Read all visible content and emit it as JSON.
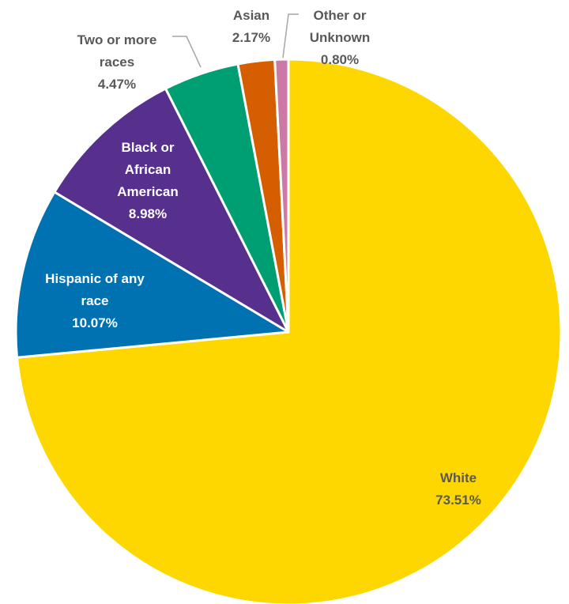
{
  "chart_data": {
    "type": "pie",
    "title": "",
    "slices": [
      {
        "label_lines": [
          "White"
        ],
        "percent_text": "73.51%",
        "value": 73.51,
        "color": "#FFD700",
        "label_color": "#595959"
      },
      {
        "label_lines": [
          "Hispanic of any",
          "race"
        ],
        "percent_text": "10.07%",
        "value": 10.07,
        "color": "#0072B2",
        "label_color": "#FFFFFF"
      },
      {
        "label_lines": [
          "Black or",
          "African",
          "American"
        ],
        "percent_text": "8.98%",
        "value": 8.98,
        "color": "#56308C",
        "label_color": "#FFFFFF"
      },
      {
        "label_lines": [
          "Two or more",
          "races"
        ],
        "percent_text": "4.47%",
        "value": 4.47,
        "color": "#009E73",
        "label_color": "#595959"
      },
      {
        "label_lines": [
          "Asian"
        ],
        "percent_text": "2.17%",
        "value": 2.17,
        "color": "#D55E00",
        "label_color": "#595959"
      },
      {
        "label_lines": [
          "Other or",
          "Unknown"
        ],
        "percent_text": "0.80%",
        "value": 0.8,
        "color": "#CC79A7",
        "label_color": "#595959"
      }
    ],
    "legend": "none",
    "label_style": "category name and percentage on or beside slice"
  }
}
